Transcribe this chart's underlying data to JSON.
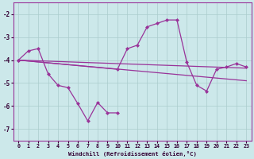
{
  "xlabel": "Windchill (Refroidissement éolien,°C)",
  "xlim": [
    -0.5,
    23.5
  ],
  "ylim": [
    -7.5,
    -1.5
  ],
  "yticks": [
    -7,
    -6,
    -5,
    -4,
    -3,
    -2
  ],
  "xticks": [
    0,
    1,
    2,
    3,
    4,
    5,
    6,
    7,
    8,
    9,
    10,
    11,
    12,
    13,
    14,
    15,
    16,
    17,
    18,
    19,
    20,
    21,
    22,
    23
  ],
  "background_color": "#cce8ea",
  "grid_color": "#aacccc",
  "line_color": "#993399",
  "series1_x": [
    0,
    1,
    2,
    3,
    4,
    5,
    6,
    7,
    8,
    9,
    10
  ],
  "series1_y": [
    -4.0,
    -3.6,
    -3.5,
    -4.6,
    -5.1,
    -5.2,
    -5.9,
    -6.65,
    -5.85,
    -6.3,
    -6.3
  ],
  "series2_x": [
    0,
    10,
    11,
    12,
    13,
    14,
    15,
    16,
    17,
    18,
    19,
    20,
    21,
    22,
    23
  ],
  "series2_y": [
    -4.0,
    -4.4,
    -3.5,
    -3.35,
    -2.55,
    -2.4,
    -2.25,
    -2.25,
    -4.1,
    -5.1,
    -5.35,
    -4.4,
    -4.3,
    -4.15,
    -4.3
  ],
  "series3_x": [
    0,
    23
  ],
  "series3_y": [
    -4.0,
    -4.35
  ],
  "series4_x": [
    0,
    23
  ],
  "series4_y": [
    -4.0,
    -4.9
  ],
  "marker": "D",
  "markersize": 2.5
}
